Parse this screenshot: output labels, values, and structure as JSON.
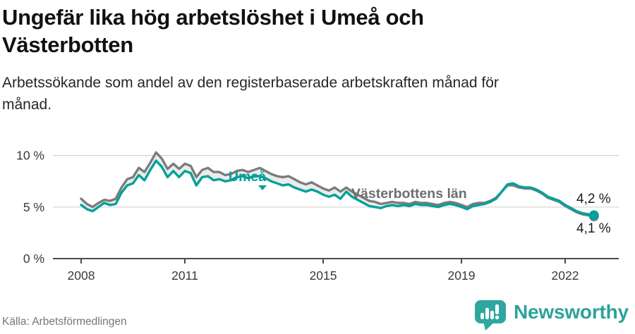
{
  "header": {
    "title_lines": [
      "Ungefär lika hög arbetslöshet i Umeå och",
      "Västerbotten"
    ],
    "subtitle_lines": [
      "Arbetssökande som andel av den registerbaserade arbetskraften månad för",
      "månad."
    ]
  },
  "chart_data": {
    "type": "line",
    "title": "Ungefär lika hög arbetslöshet i Umeå och Västerbotten",
    "subtitle": "Arbetssökande som andel av den registerbaserade arbetskraften månad för månad.",
    "x_unit": "year (monthly samples)",
    "x_start": 2008.0,
    "x_step_years": 0.166667,
    "xlim": [
      2008,
      2022.84
    ],
    "ylim": [
      0,
      11.8
    ],
    "grid": "horizontal",
    "legend_position": "inline-labels",
    "x_ticks": [
      {
        "label": "2008",
        "year": 2008
      },
      {
        "label": "2011",
        "year": 2011
      },
      {
        "label": "2015",
        "year": 2015
      },
      {
        "label": "2019",
        "year": 2019
      },
      {
        "label": "2022",
        "year": 2022
      }
    ],
    "y_ticks": [
      {
        "label": "10 %",
        "value": 10
      },
      {
        "label": "5 %",
        "value": 5
      },
      {
        "label": "0 %",
        "value": 0
      }
    ],
    "band_fill": "#ececec",
    "series": [
      {
        "name": "Umeå",
        "color": "#00a19a",
        "end_label": "4,2 %",
        "end_dot": true,
        "values": [
          5.2,
          4.8,
          4.6,
          5.0,
          5.4,
          5.2,
          5.3,
          6.4,
          7.1,
          7.3,
          8.1,
          7.6,
          8.6,
          9.5,
          8.9,
          7.9,
          8.5,
          7.9,
          8.5,
          8.3,
          7.1,
          7.9,
          8.0,
          7.6,
          7.7,
          7.5,
          7.6,
          7.9,
          8.0,
          7.8,
          8.0,
          8.0,
          7.8,
          7.5,
          7.3,
          7.1,
          7.2,
          6.9,
          6.7,
          6.5,
          6.7,
          6.5,
          6.2,
          6.0,
          6.2,
          5.8,
          6.5,
          6.0,
          5.7,
          5.4,
          5.1,
          5.0,
          4.9,
          5.1,
          5.2,
          5.1,
          5.2,
          5.1,
          5.3,
          5.2,
          5.2,
          5.1,
          5.0,
          5.2,
          5.3,
          5.2,
          5.0,
          4.8,
          5.1,
          5.2,
          5.3,
          5.5,
          5.8,
          6.5,
          7.2,
          7.3,
          7.0,
          6.9,
          6.9,
          6.7,
          6.4,
          6.0,
          5.8,
          5.6,
          5.2,
          4.9,
          4.6,
          4.4,
          4.3,
          4.2
        ]
      },
      {
        "name": "Västerbottens län",
        "color": "#7c7c7c",
        "end_label": "4,1 %",
        "end_dot": true,
        "values": [
          5.8,
          5.3,
          5.0,
          5.4,
          5.7,
          5.6,
          5.8,
          6.9,
          7.7,
          7.9,
          8.8,
          8.4,
          9.3,
          10.3,
          9.7,
          8.7,
          9.2,
          8.7,
          9.2,
          9.0,
          7.9,
          8.6,
          8.8,
          8.4,
          8.4,
          8.1,
          8.2,
          8.5,
          8.6,
          8.4,
          8.6,
          8.8,
          8.5,
          8.2,
          8.0,
          7.9,
          8.0,
          7.7,
          7.4,
          7.2,
          7.4,
          7.1,
          6.8,
          6.6,
          6.9,
          6.5,
          6.9,
          6.5,
          6.2,
          5.9,
          5.6,
          5.5,
          5.3,
          5.4,
          5.5,
          5.4,
          5.4,
          5.3,
          5.5,
          5.4,
          5.4,
          5.3,
          5.2,
          5.4,
          5.5,
          5.4,
          5.2,
          5.0,
          5.3,
          5.4,
          5.4,
          5.6,
          5.9,
          6.5,
          7.1,
          7.1,
          6.9,
          6.8,
          6.8,
          6.6,
          6.3,
          5.9,
          5.7,
          5.5,
          5.1,
          4.8,
          4.5,
          4.3,
          4.2,
          4.1
        ]
      }
    ]
  },
  "footer": {
    "source": "Källa: Arbetsförmedlingen",
    "brand": "Newsworthy"
  },
  "colors": {
    "accent_teal": "#00a19a",
    "line_gray": "#7c7c7c",
    "gridline": "#d8d8d8",
    "axis": "#4b4b4b",
    "band": "#ececec",
    "logo_teal": "#2ca29b"
  }
}
